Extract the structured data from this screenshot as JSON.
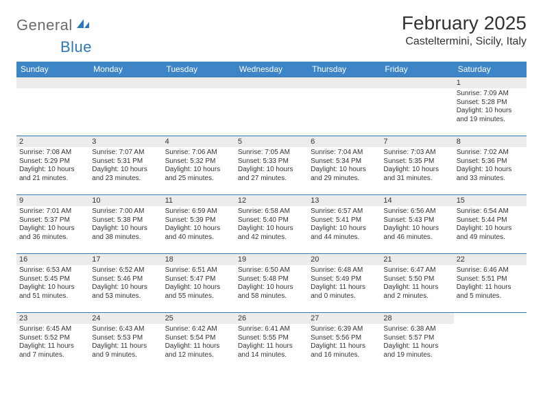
{
  "logo": {
    "general": "General",
    "blue": "Blue"
  },
  "title": "February 2025",
  "subtitle": "Casteltermini, Sicily, Italy",
  "header_bg": "#3d85c6",
  "border_color": "#2f77b6",
  "day_headers": [
    "Sunday",
    "Monday",
    "Tuesday",
    "Wednesday",
    "Thursday",
    "Friday",
    "Saturday"
  ],
  "weeks": [
    [
      null,
      null,
      null,
      null,
      null,
      null,
      {
        "n": "1",
        "sunrise": "Sunrise: 7:09 AM",
        "sunset": "Sunset: 5:28 PM",
        "day1": "Daylight: 10 hours",
        "day2": "and 19 minutes."
      }
    ],
    [
      {
        "n": "2",
        "sunrise": "Sunrise: 7:08 AM",
        "sunset": "Sunset: 5:29 PM",
        "day1": "Daylight: 10 hours",
        "day2": "and 21 minutes."
      },
      {
        "n": "3",
        "sunrise": "Sunrise: 7:07 AM",
        "sunset": "Sunset: 5:31 PM",
        "day1": "Daylight: 10 hours",
        "day2": "and 23 minutes."
      },
      {
        "n": "4",
        "sunrise": "Sunrise: 7:06 AM",
        "sunset": "Sunset: 5:32 PM",
        "day1": "Daylight: 10 hours",
        "day2": "and 25 minutes."
      },
      {
        "n": "5",
        "sunrise": "Sunrise: 7:05 AM",
        "sunset": "Sunset: 5:33 PM",
        "day1": "Daylight: 10 hours",
        "day2": "and 27 minutes."
      },
      {
        "n": "6",
        "sunrise": "Sunrise: 7:04 AM",
        "sunset": "Sunset: 5:34 PM",
        "day1": "Daylight: 10 hours",
        "day2": "and 29 minutes."
      },
      {
        "n": "7",
        "sunrise": "Sunrise: 7:03 AM",
        "sunset": "Sunset: 5:35 PM",
        "day1": "Daylight: 10 hours",
        "day2": "and 31 minutes."
      },
      {
        "n": "8",
        "sunrise": "Sunrise: 7:02 AM",
        "sunset": "Sunset: 5:36 PM",
        "day1": "Daylight: 10 hours",
        "day2": "and 33 minutes."
      }
    ],
    [
      {
        "n": "9",
        "sunrise": "Sunrise: 7:01 AM",
        "sunset": "Sunset: 5:37 PM",
        "day1": "Daylight: 10 hours",
        "day2": "and 36 minutes."
      },
      {
        "n": "10",
        "sunrise": "Sunrise: 7:00 AM",
        "sunset": "Sunset: 5:38 PM",
        "day1": "Daylight: 10 hours",
        "day2": "and 38 minutes."
      },
      {
        "n": "11",
        "sunrise": "Sunrise: 6:59 AM",
        "sunset": "Sunset: 5:39 PM",
        "day1": "Daylight: 10 hours",
        "day2": "and 40 minutes."
      },
      {
        "n": "12",
        "sunrise": "Sunrise: 6:58 AM",
        "sunset": "Sunset: 5:40 PM",
        "day1": "Daylight: 10 hours",
        "day2": "and 42 minutes."
      },
      {
        "n": "13",
        "sunrise": "Sunrise: 6:57 AM",
        "sunset": "Sunset: 5:41 PM",
        "day1": "Daylight: 10 hours",
        "day2": "and 44 minutes."
      },
      {
        "n": "14",
        "sunrise": "Sunrise: 6:56 AM",
        "sunset": "Sunset: 5:43 PM",
        "day1": "Daylight: 10 hours",
        "day2": "and 46 minutes."
      },
      {
        "n": "15",
        "sunrise": "Sunrise: 6:54 AM",
        "sunset": "Sunset: 5:44 PM",
        "day1": "Daylight: 10 hours",
        "day2": "and 49 minutes."
      }
    ],
    [
      {
        "n": "16",
        "sunrise": "Sunrise: 6:53 AM",
        "sunset": "Sunset: 5:45 PM",
        "day1": "Daylight: 10 hours",
        "day2": "and 51 minutes."
      },
      {
        "n": "17",
        "sunrise": "Sunrise: 6:52 AM",
        "sunset": "Sunset: 5:46 PM",
        "day1": "Daylight: 10 hours",
        "day2": "and 53 minutes."
      },
      {
        "n": "18",
        "sunrise": "Sunrise: 6:51 AM",
        "sunset": "Sunset: 5:47 PM",
        "day1": "Daylight: 10 hours",
        "day2": "and 55 minutes."
      },
      {
        "n": "19",
        "sunrise": "Sunrise: 6:50 AM",
        "sunset": "Sunset: 5:48 PM",
        "day1": "Daylight: 10 hours",
        "day2": "and 58 minutes."
      },
      {
        "n": "20",
        "sunrise": "Sunrise: 6:48 AM",
        "sunset": "Sunset: 5:49 PM",
        "day1": "Daylight: 11 hours",
        "day2": "and 0 minutes."
      },
      {
        "n": "21",
        "sunrise": "Sunrise: 6:47 AM",
        "sunset": "Sunset: 5:50 PM",
        "day1": "Daylight: 11 hours",
        "day2": "and 2 minutes."
      },
      {
        "n": "22",
        "sunrise": "Sunrise: 6:46 AM",
        "sunset": "Sunset: 5:51 PM",
        "day1": "Daylight: 11 hours",
        "day2": "and 5 minutes."
      }
    ],
    [
      {
        "n": "23",
        "sunrise": "Sunrise: 6:45 AM",
        "sunset": "Sunset: 5:52 PM",
        "day1": "Daylight: 11 hours",
        "day2": "and 7 minutes."
      },
      {
        "n": "24",
        "sunrise": "Sunrise: 6:43 AM",
        "sunset": "Sunset: 5:53 PM",
        "day1": "Daylight: 11 hours",
        "day2": "and 9 minutes."
      },
      {
        "n": "25",
        "sunrise": "Sunrise: 6:42 AM",
        "sunset": "Sunset: 5:54 PM",
        "day1": "Daylight: 11 hours",
        "day2": "and 12 minutes."
      },
      {
        "n": "26",
        "sunrise": "Sunrise: 6:41 AM",
        "sunset": "Sunset: 5:55 PM",
        "day1": "Daylight: 11 hours",
        "day2": "and 14 minutes."
      },
      {
        "n": "27",
        "sunrise": "Sunrise: 6:39 AM",
        "sunset": "Sunset: 5:56 PM",
        "day1": "Daylight: 11 hours",
        "day2": "and 16 minutes."
      },
      {
        "n": "28",
        "sunrise": "Sunrise: 6:38 AM",
        "sunset": "Sunset: 5:57 PM",
        "day1": "Daylight: 11 hours",
        "day2": "and 19 minutes."
      },
      null
    ]
  ]
}
